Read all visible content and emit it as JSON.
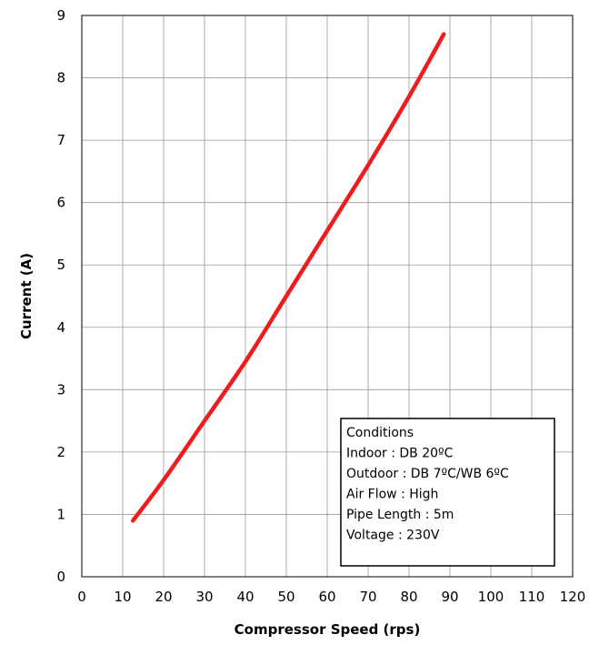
{
  "chart_data": {
    "type": "line",
    "title": "",
    "xlabel": "Compressor Speed (rps)",
    "ylabel": "Current (A)",
    "xlim": [
      0,
      120
    ],
    "ylim": [
      0,
      9
    ],
    "x_ticks": [
      0,
      10,
      20,
      30,
      40,
      50,
      60,
      70,
      80,
      90,
      100,
      110,
      120
    ],
    "y_ticks": [
      0,
      1,
      2,
      3,
      4,
      5,
      6,
      7,
      8,
      9
    ],
    "grid": true,
    "series": [
      {
        "color": "#ee1c1c",
        "x": [
          12.5,
          20,
          30,
          40,
          50,
          60,
          70,
          80,
          88.5
        ],
        "y": [
          0.9,
          1.55,
          2.5,
          3.45,
          4.5,
          5.55,
          6.6,
          7.7,
          8.7
        ]
      }
    ],
    "conditions_box": {
      "placement": "bottom-right",
      "lines": [
        "Conditions",
        "Indoor : DB 20ºC",
        "Outdoor : DB 7ºC/WB 6ºC",
        "Air Flow : High",
        "Pipe Length : 5m",
        "Voltage : 230V"
      ]
    }
  }
}
